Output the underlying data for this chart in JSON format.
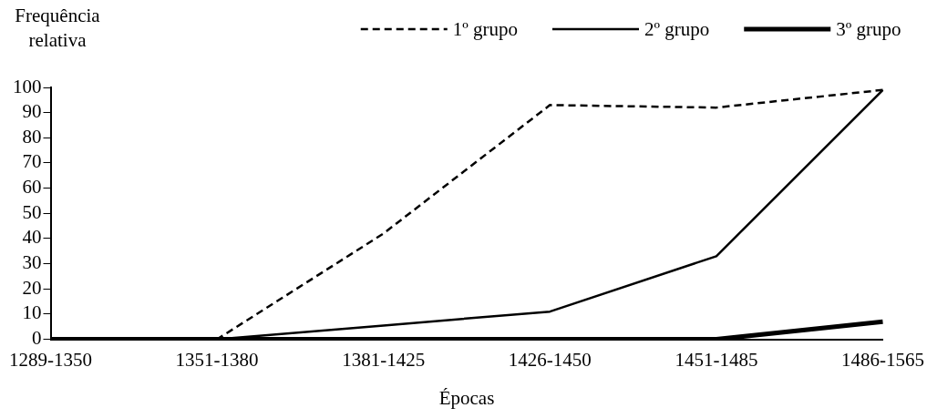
{
  "chart_data": {
    "type": "line",
    "ylabel": "Frequência relativa",
    "xlabel": "Épocas",
    "categories": [
      "1289-1350",
      "1351-1380",
      "1381-1425",
      "1426-1450",
      "1451-1485",
      "1486-1565"
    ],
    "series": [
      {
        "name": "1º grupo",
        "color": "#000000",
        "line_style": "dashed",
        "values": [
          0,
          0,
          42,
          93,
          92,
          99
        ]
      },
      {
        "name": "2º grupo",
        "color": "#000000",
        "line_style": "solid",
        "values": [
          0,
          0,
          5.5,
          11,
          33,
          99
        ]
      },
      {
        "name": "3º grupo",
        "color": "#000000",
        "line_style": "solid",
        "values": [
          0,
          0,
          0,
          0,
          0,
          7
        ]
      }
    ],
    "ylim": [
      0,
      100
    ],
    "yticks": [
      0,
      10,
      20,
      30,
      40,
      50,
      60,
      70,
      80,
      90,
      100
    ],
    "grid": false,
    "legend": "top",
    "marker": "none"
  }
}
